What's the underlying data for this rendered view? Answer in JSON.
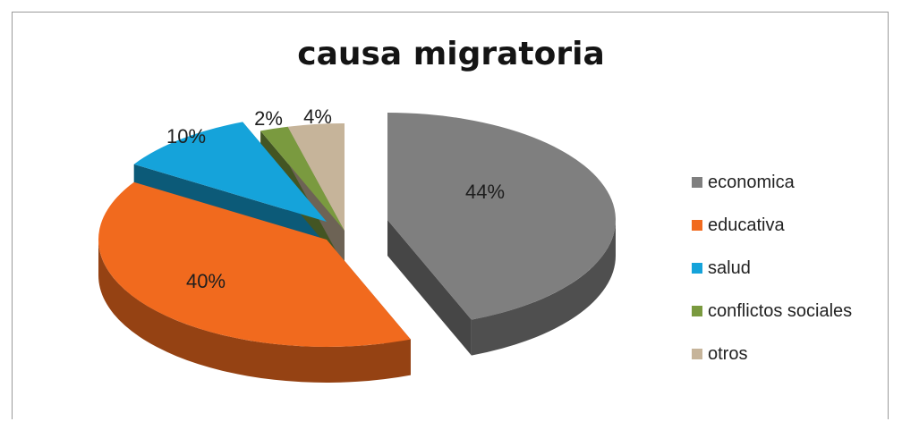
{
  "chart_data": {
    "type": "pie",
    "title": "causa migratoria",
    "categories": [
      "economica",
      "educativa",
      "salud",
      "conflictos sociales",
      "otros"
    ],
    "values": [
      44,
      40,
      10,
      2,
      4
    ],
    "value_labels": [
      "44%",
      "40%",
      "10%",
      "2%",
      "4%"
    ],
    "colors": [
      "#7f7f7f",
      "#f16a1e",
      "#15a3da",
      "#7a9a3f",
      "#c6b49a"
    ],
    "legend_position": "right",
    "style": "3d exploded"
  }
}
